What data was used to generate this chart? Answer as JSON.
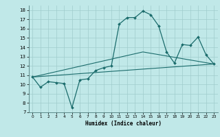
{
  "title": "",
  "xlabel": "Humidex (Indice chaleur)",
  "background_color": "#c0e8e8",
  "line_color": "#1a6b6b",
  "grid_color": "#a0cccc",
  "xlim": [
    -0.5,
    23.5
  ],
  "ylim": [
    7,
    18.5
  ],
  "yticks": [
    7,
    8,
    9,
    10,
    11,
    12,
    13,
    14,
    15,
    16,
    17,
    18
  ],
  "xticks": [
    0,
    1,
    2,
    3,
    4,
    5,
    6,
    7,
    8,
    9,
    10,
    11,
    12,
    13,
    14,
    15,
    16,
    17,
    18,
    19,
    20,
    21,
    22,
    23
  ],
  "line1_x": [
    0,
    1,
    2,
    3,
    4,
    5,
    6,
    7,
    8,
    9,
    10,
    11,
    12,
    13,
    14,
    15,
    16,
    17,
    18,
    19,
    20,
    21,
    22,
    23
  ],
  "line1_y": [
    10.8,
    9.7,
    10.3,
    10.2,
    10.1,
    7.5,
    10.5,
    10.6,
    11.5,
    11.8,
    12.0,
    16.5,
    17.2,
    17.2,
    17.9,
    17.5,
    16.3,
    13.5,
    12.3,
    14.3,
    14.2,
    15.1,
    13.2,
    12.2
  ],
  "line2_x": [
    0,
    23
  ],
  "line2_y": [
    10.8,
    12.2
  ],
  "line3_x": [
    0,
    14,
    23
  ],
  "line3_y": [
    10.8,
    13.5,
    12.2
  ]
}
